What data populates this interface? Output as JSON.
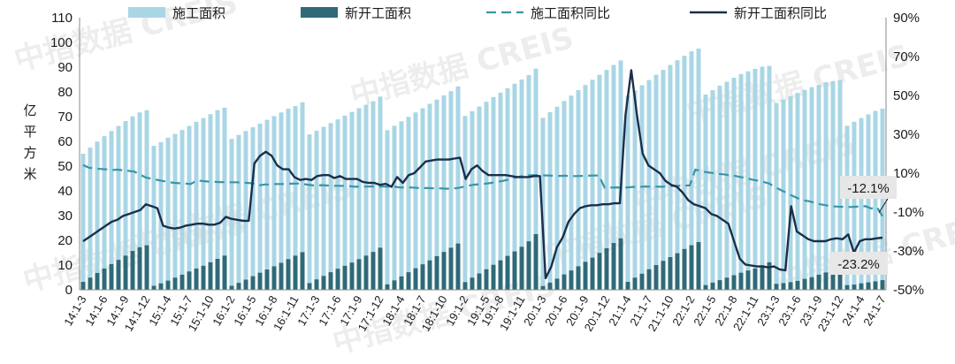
{
  "watermark": "中指数据 CREIS",
  "colors": {
    "construction_area": "#a9d6e5",
    "new_start_area": "#2e6a78",
    "construction_yoy": "#3a94a8",
    "new_start_yoy": "#1b2e4b",
    "annotation_box": "#e7e7e7"
  },
  "chart_data": {
    "type": "bar",
    "left_axis": {
      "label": "亿平方米",
      "range": [
        0,
        110
      ],
      "ticks": [
        "0",
        "10",
        "20",
        "30",
        "40",
        "50",
        "60",
        "70",
        "80",
        "90",
        "100",
        "110"
      ]
    },
    "right_axis": {
      "range": [
        -50,
        90
      ],
      "ticks": [
        "-50%",
        "-30%",
        "-10%",
        "10%",
        "30%",
        "50%",
        "70%",
        "90%"
      ]
    },
    "x_ticks": [
      "14:1-3",
      "14:1-6",
      "14:1-9",
      "14:1-12",
      "15:1-4",
      "15:1-7",
      "15:1-10",
      "16:1-2",
      "16:1-5",
      "16:1-8",
      "16:1-11",
      "17:1-3",
      "17:1-6",
      "17:1-9",
      "17:1-12",
      "18:1-4",
      "18:1-7",
      "18:1-10",
      "19:1-2",
      "19:1-5",
      "19:1-8",
      "19:1-11",
      "20:1-3",
      "20:1-6",
      "20:1-9",
      "20:1-12",
      "21:1-4",
      "21:1-7",
      "21:1-10",
      "22:1-2",
      "22:1-5",
      "22:1-8",
      "22:1-11",
      "23:1-3",
      "23:1-6",
      "23:1-9",
      "23:1-12",
      "24:1-4",
      "24:1-7"
    ],
    "legend": [
      "施工面积",
      "新开工面积",
      "施工面积同比",
      "新开工面积同比"
    ],
    "annotations": [
      {
        "label": "-12.1%",
        "series": "施工面积同比"
      },
      {
        "label": "-23.2%",
        "series": "新开工面积同比"
      }
    ],
    "series": [
      {
        "name": "施工面积",
        "axis": "left",
        "type": "bar",
        "values": [
          {
            "year": 14,
            "values": [
              55.0,
              57.5,
              59.9,
              62.1,
              64.2,
              66.2,
              68.2,
              70.1,
              71.7,
              72.6
            ]
          },
          {
            "year": 15,
            "values": [
              58.2,
              59.7,
              61.5,
              63.0,
              64.6,
              66.2,
              67.9,
              69.4,
              71.0,
              72.6,
              73.6
            ]
          },
          {
            "year": 16,
            "values": [
              61.0,
              62.6,
              64.2,
              65.7,
              67.2,
              68.7,
              70.2,
              71.7,
              73.2,
              74.3,
              75.8
            ]
          },
          {
            "year": 17,
            "values": [
              62.8,
              64.3,
              65.9,
              67.4,
              68.9,
              70.4,
              71.9,
              73.4,
              74.8,
              76.2,
              78.1
            ]
          },
          {
            "year": 18,
            "values": [
              64.5,
              66.3,
              68.1,
              69.9,
              71.7,
              73.4,
              75.2,
              76.9,
              78.6,
              80.3,
              82.2
            ]
          },
          {
            "year": 19,
            "values": [
              70.3,
              72.2,
              74.1,
              76.0,
              77.9,
              79.7,
              81.5,
              83.3,
              85.0,
              86.8,
              89.4
            ]
          },
          {
            "year": 20,
            "values": [
              69.5,
              71.8,
              74.0,
              76.3,
              78.5,
              80.7,
              82.8,
              84.9,
              86.9,
              88.9,
              90.9,
              92.7
            ]
          },
          {
            "year": 21,
            "values": [
              78.5,
              80.6,
              82.7,
              84.8,
              86.9,
              88.9,
              90.9,
              92.8,
              94.6,
              96.4,
              97.5
            ]
          },
          {
            "year": 22,
            "values": [
              78.9,
              80.7,
              82.5,
              84.1,
              85.7,
              87.2,
              88.3,
              89.3,
              90.2,
              90.5
            ]
          },
          {
            "year": 23,
            "values": [
              75.5,
              76.9,
              78.3,
              79.6,
              80.8,
              81.9,
              82.8,
              83.9,
              84.3,
              84.8
            ]
          },
          {
            "year": 24,
            "values": [
              66.3,
              67.9,
              69.4,
              70.9,
              72.3,
              73.2
            ]
          }
        ]
      },
      {
        "name": "新开工面积",
        "axis": "left",
        "type": "bar",
        "values": [
          {
            "year": 14,
            "values": [
              3.2,
              4.9,
              6.8,
              8.6,
              10.4,
              12.1,
              13.8,
              15.7,
              17.2,
              18.0
            ]
          },
          {
            "year": 15,
            "values": [
              1.6,
              2.6,
              3.7,
              4.9,
              6.1,
              7.4,
              8.6,
              9.7,
              11.1,
              12.5,
              13.8
            ]
          },
          {
            "year": 16,
            "values": [
              1.6,
              2.8,
              4.1,
              5.5,
              6.9,
              8.2,
              9.5,
              10.9,
              12.4,
              13.8,
              15.2
            ]
          },
          {
            "year": 17,
            "values": [
              2.7,
              4.2,
              5.6,
              7.1,
              8.5,
              9.7,
              11.0,
              12.4,
              13.8,
              15.3,
              17.0
            ]
          },
          {
            "year": 18,
            "values": [
              2.2,
              3.8,
              5.4,
              7.1,
              8.7,
              10.3,
              11.9,
              13.6,
              15.3,
              17.0,
              18.7
            ]
          },
          {
            "year": 19,
            "values": [
              3.1,
              4.9,
              6.6,
              8.3,
              10.1,
              11.9,
              13.7,
              15.5,
              17.4,
              19.6,
              22.5
            ]
          },
          {
            "year": 20,
            "values": [
              1.5,
              2.9,
              4.5,
              6.2,
              7.8,
              9.5,
              11.3,
              13.0,
              14.9,
              16.8,
              18.9,
              20.8
            ]
          },
          {
            "year": 21,
            "values": [
              3.2,
              4.9,
              6.5,
              8.3,
              10.0,
              11.7,
              13.2,
              14.8,
              16.5,
              18.0,
              19.3
            ]
          },
          {
            "year": 22,
            "values": [
              1.9,
              2.9,
              3.9,
              4.9,
              5.9,
              6.9,
              7.8,
              8.6,
              9.9,
              11.1
            ]
          },
          {
            "year": 23,
            "values": [
              2.4,
              2.7,
              3.1,
              3.6,
              4.4,
              5.1,
              6.1,
              7.0,
              7.5,
              8.2
            ]
          },
          {
            "year": 24,
            "values": [
              1.9,
              2.1,
              2.6,
              3.0,
              3.4,
              3.9
            ]
          }
        ]
      },
      {
        "name": "施工面积同比",
        "axis": "right",
        "type": "line",
        "dashed": true,
        "values": [
          14.2,
          12.8,
          12.4,
          12.2,
          12.0,
          11.6,
          11.8,
          11.5,
          11.2,
          10.8,
          9.4,
          7.8,
          7.2,
          6.6,
          6.0,
          5.5,
          5.0,
          4.8,
          4.7,
          4.4,
          6.2,
          6.0,
          5.7,
          5.6,
          5.4,
          5.4,
          5.3,
          5.3,
          5.2,
          5.0,
          4.7,
          3.7,
          4.2,
          4.2,
          4.4,
          4.4,
          4.5,
          4.6,
          4.7,
          4.3,
          3.9,
          3.6,
          3.8,
          3.7,
          3.5,
          3.5,
          3.5,
          3.3,
          3.0,
          3.2,
          3.1,
          3.2,
          3.2,
          3.1,
          3.0,
          3.0,
          2.6,
          2.8,
          2.6,
          2.4,
          2.3,
          2.3,
          2.2,
          2.2,
          2.0,
          2.1,
          2.3,
          2.9,
          3.6,
          4.1,
          4.3,
          4.6,
          5.0,
          5.5,
          6.0,
          6.7,
          7.6,
          8.2,
          8.8,
          8.9,
          9.0,
          8.9,
          8.8,
          8.7,
          8.6,
          8.7,
          8.5,
          8.5,
          8.6,
          8.7,
          8.8,
          8.8,
          2.5,
          2.6,
          2.7,
          2.5,
          2.7,
          2.9,
          3.0,
          3.1,
          3.1,
          3.1,
          3.0,
          3.2,
          3.4,
          3.5,
          3.6,
          3.7,
          11.8,
          11.0,
          10.5,
          10.1,
          9.6,
          9.4,
          8.9,
          8.6,
          8.0,
          7.5,
          6.7,
          6.2,
          5.5,
          4.7,
          2.9,
          1.4,
          0.0,
          -1.5,
          -2.8,
          -4.0,
          -4.4,
          -5.2,
          -6.0,
          -6.5,
          -7.1,
          -7.2,
          -7.3,
          -7.4,
          -7.3,
          -7.1,
          -7.0,
          -8.2,
          -7.5,
          -12.1
        ]
      },
      {
        "name": "新开工面积同比",
        "axis": "right",
        "type": "line",
        "values": [
          -25.0,
          -23.0,
          -21.0,
          -19.0,
          -17.0,
          -15.0,
          -14.0,
          -12.0,
          -11.0,
          -10.0,
          -9.0,
          -6.0,
          -7.0,
          -8.0,
          -17.0,
          -18.0,
          -18.5,
          -18.0,
          -17.0,
          -16.5,
          -16.0,
          -16.0,
          -16.5,
          -16.5,
          -15.5,
          -12.5,
          -13.5,
          -14.0,
          -14.5,
          -14.5,
          15.0,
          19.0,
          21.0,
          19.0,
          14.0,
          12.0,
          12.0,
          8.0,
          6.5,
          7.0,
          6.5,
          8.5,
          9.0,
          9.0,
          7.5,
          8.5,
          7.0,
          7.0,
          7.0,
          5.5,
          5.0,
          5.0,
          4.0,
          4.5,
          3.0,
          8.0,
          5.0,
          9.0,
          10.0,
          13.0,
          16.0,
          16.5,
          17.0,
          17.0,
          17.0,
          17.5,
          18.0,
          7.0,
          12.0,
          14.0,
          11.0,
          9.0,
          9.0,
          9.0,
          9.0,
          8.5,
          8.0,
          8.0,
          8.0,
          8.5,
          8.5,
          -44.0,
          -38.0,
          -28.0,
          -23.0,
          -15.0,
          -11.0,
          -8.0,
          -7.0,
          -6.5,
          -6.5,
          -6.0,
          -6.0,
          -5.5,
          -5.5,
          40.0,
          63.0,
          40.0,
          20.0,
          14.0,
          12.0,
          10.0,
          6.0,
          4.0,
          3.0,
          0.0,
          -4.0,
          -6.0,
          -7.0,
          -8.0,
          -11.0,
          -12.0,
          -14.0,
          -16.0,
          -25.0,
          -34.0,
          -37.0,
          -37.5,
          -38.0,
          -38.0,
          -38.5,
          -38.0,
          -39.5,
          -40.0,
          -7.0,
          -20.0,
          -22.0,
          -24.0,
          -25.0,
          -25.0,
          -25.0,
          -24.0,
          -23.5,
          -24.0,
          -21.5,
          -31.0,
          -25.0,
          -24.0,
          -24.0,
          -23.5,
          -23.2
        ]
      }
    ]
  }
}
